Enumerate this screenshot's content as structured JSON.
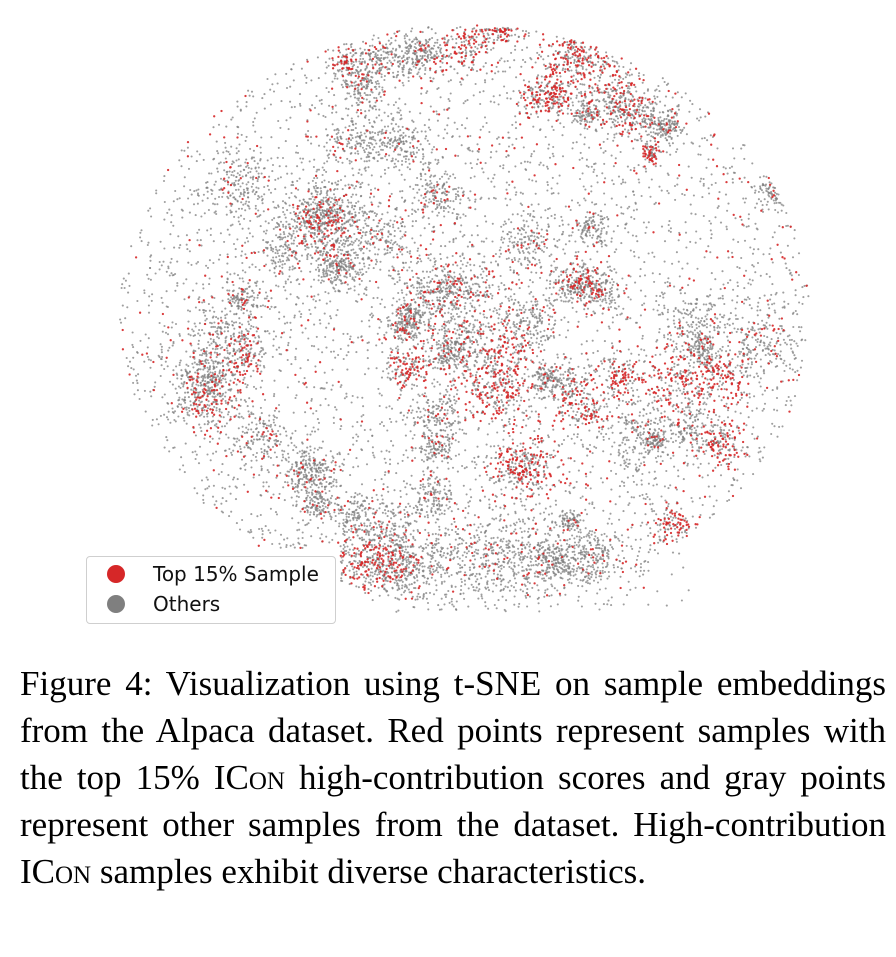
{
  "chart_data": {
    "type": "scatter",
    "title": "",
    "xlabel": "",
    "ylabel": "",
    "axes_visible": false,
    "grid": false,
    "legend_placement": "lower-left",
    "series": [
      {
        "name": "Top 15% Sample",
        "color": "#d62728",
        "share_of_points": 0.15
      },
      {
        "name": "Others",
        "color": "#7f7f7f",
        "share_of_points": 0.85
      }
    ]
  },
  "legend": {
    "top": {
      "label": "Top 15% Sample",
      "color": "#d62728"
    },
    "others": {
      "label": "Others",
      "color": "#7f7f7f"
    }
  },
  "caption": {
    "label": "Figure 4:",
    "text_before": "Visualization using t-SNE on sample embeddings from the Alpaca dataset. Red points represent samples with the top 15% I",
    "sc1": "Con",
    "text_middle": " high-contribution scores and gray points represent other samples from the dataset. High-contribution I",
    "sc2": "Con",
    "text_after": " samples exhibit diverse characteristics."
  }
}
